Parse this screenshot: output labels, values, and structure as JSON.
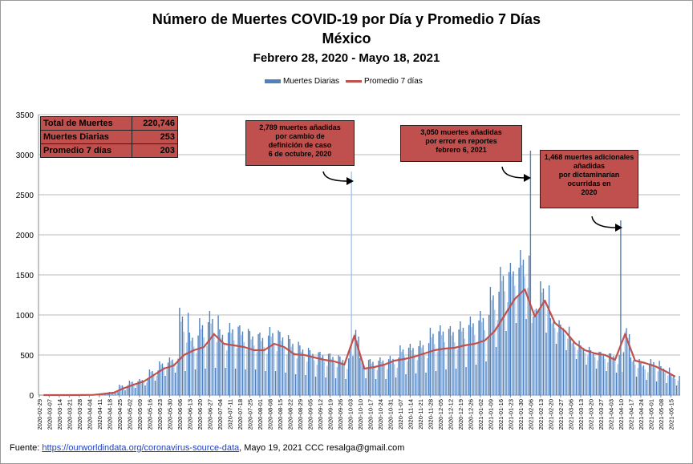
{
  "chart_data": {
    "type": "bar",
    "title": "Número de Muertes COVID-19 por Día y Promedio 7 Días",
    "subtitle": "México",
    "date_range": "Febrero 28, 2020 - Mayo 18, 2021",
    "ylim": [
      0,
      3500
    ],
    "yticks": [
      "0",
      "500",
      "1000",
      "1500",
      "2000",
      "2500",
      "3000",
      "3500"
    ],
    "grid": true,
    "legend_position": "top-center",
    "x_tick_labels": [
      "2020-02-29",
      "2020-03-07",
      "2020-03-14",
      "2020-03-21",
      "2020-03-28",
      "2020-04-04",
      "2020-04-11",
      "2020-04-18",
      "2020-04-25",
      "2020-05-02",
      "2020-05-09",
      "2020-05-16",
      "2020-05-23",
      "2020-05-30",
      "2020-06-06",
      "2020-06-13",
      "2020-06-20",
      "2020-06-27",
      "2020-07-04",
      "2020-07-11",
      "2020-07-18",
      "2020-07-25",
      "2020-08-01",
      "2020-08-08",
      "2020-08-15",
      "2020-08-22",
      "2020-08-29",
      "2020-09-05",
      "2020-09-12",
      "2020-09-19",
      "2020-09-26",
      "2020-10-03",
      "2020-10-10",
      "2020-10-17",
      "2020-10-24",
      "2020-10-31",
      "2020-11-07",
      "2020-11-14",
      "2020-11-21",
      "2020-11-28",
      "2020-12-05",
      "2020-12-12",
      "2020-12-19",
      "2020-12-26",
      "2021-01-02",
      "2021-01-09",
      "2021-01-16",
      "2021-01-23",
      "2021-01-30",
      "2021-02-06",
      "2021-02-13",
      "2021-02-20",
      "2021-02-27",
      "2021-03-06",
      "2021-03-13",
      "2021-03-20",
      "2021-03-27",
      "2021-04-03",
      "2021-04-10",
      "2021-04-17",
      "2021-04-24",
      "2021-05-01",
      "2021-05-08",
      "2021-05-15"
    ],
    "series": [
      {
        "name": "Muertes Diarias",
        "color": "#4f81bd",
        "weekly_peak_values": [
          0,
          0,
          0,
          0,
          2,
          5,
          20,
          40,
          130,
          180,
          200,
          320,
          420,
          470,
          1090,
          780,
          960,
          1050,
          820,
          900,
          870,
          800,
          780,
          850,
          790,
          700,
          620,
          560,
          540,
          520,
          480,
          2789,
          460,
          450,
          470,
          490,
          620,
          640,
          680,
          840,
          870,
          860,
          920,
          980,
          1050,
          1350,
          1600,
          1650,
          1810,
          3050,
          1420,
          960,
          880,
          700,
          620,
          560,
          540,
          520,
          2180,
          470,
          400,
          450,
          360,
          250
        ],
        "weekly_min_values": [
          0,
          0,
          0,
          0,
          0,
          1,
          10,
          25,
          60,
          90,
          120,
          180,
          240,
          280,
          300,
          320,
          330,
          340,
          340,
          330,
          320,
          320,
          300,
          300,
          280,
          260,
          250,
          230,
          220,
          210,
          200,
          220,
          210,
          200,
          200,
          220,
          260,
          270,
          280,
          300,
          320,
          330,
          350,
          380,
          420,
          600,
          800,
          900,
          950,
          900,
          780,
          640,
          560,
          450,
          380,
          330,
          300,
          280,
          290,
          230,
          190,
          170,
          150,
          120
        ]
      },
      {
        "name": "Promedio 7 días",
        "color": "#c0504d",
        "weekly_values": [
          0,
          0,
          0,
          0,
          1,
          3,
          15,
          30,
          85,
          130,
          170,
          250,
          330,
          370,
          500,
          560,
          600,
          760,
          640,
          620,
          600,
          560,
          560,
          640,
          600,
          510,
          500,
          470,
          440,
          420,
          380,
          740,
          330,
          350,
          380,
          430,
          450,
          480,
          520,
          560,
          580,
          590,
          620,
          640,
          680,
          800,
          1000,
          1200,
          1320,
          980,
          1180,
          900,
          800,
          650,
          560,
          520,
          500,
          440,
          760,
          430,
          400,
          360,
          300,
          230
        ]
      }
    ],
    "summary_table": [
      {
        "label": "Total de Muertes",
        "value": "220,746"
      },
      {
        "label": "Muertes Diarias",
        "value": "253"
      },
      {
        "label": "Promedio 7 días",
        "value": "203"
      }
    ],
    "annotations": [
      {
        "lines": [
          "2,789 muertes  añadidas",
          "por cambio de",
          "definición de caso",
          "6 de octubre,  2020"
        ],
        "points_to": "2020-10-05",
        "value": 2789
      },
      {
        "lines": [
          "3,050 muertes  añadidas",
          "por error en reportes",
          "febrero  6, 2021"
        ],
        "points_to": "2021-02-06",
        "value": 3050
      },
      {
        "lines": [
          "1,468  muertes adicionales",
          "añadidas",
          "por dictaminarían",
          "ocurridas en",
          "2020"
        ],
        "points_to": "2021-04-10",
        "value": 2180
      }
    ]
  },
  "footer": {
    "prefix": "Fuente: ",
    "link_text": "https://ourworldindata.org/coronavirus-source-data",
    "suffix": ",  Mayo 19, 2021    CCC   resalga@gmail.com"
  }
}
